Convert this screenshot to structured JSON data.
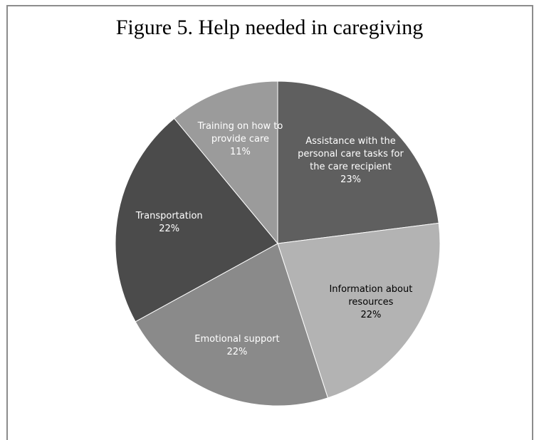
{
  "chart_data": {
    "type": "pie",
    "title": "Figure 5. Help needed in caregiving",
    "categories": [
      "Assistance with the personal care tasks for the care recipient",
      "Information about resources",
      "Emotional support",
      "Transportation",
      "Training on how to provide care"
    ],
    "values": [
      23,
      22,
      22,
      22,
      11
    ],
    "value_labels": [
      "23%",
      "22%",
      "22%",
      "22%",
      "11%"
    ],
    "colors": [
      "#5f5f5f",
      "#b3b3b3",
      "#8a8a8a",
      "#4b4b4b",
      "#9b9b9b"
    ]
  }
}
